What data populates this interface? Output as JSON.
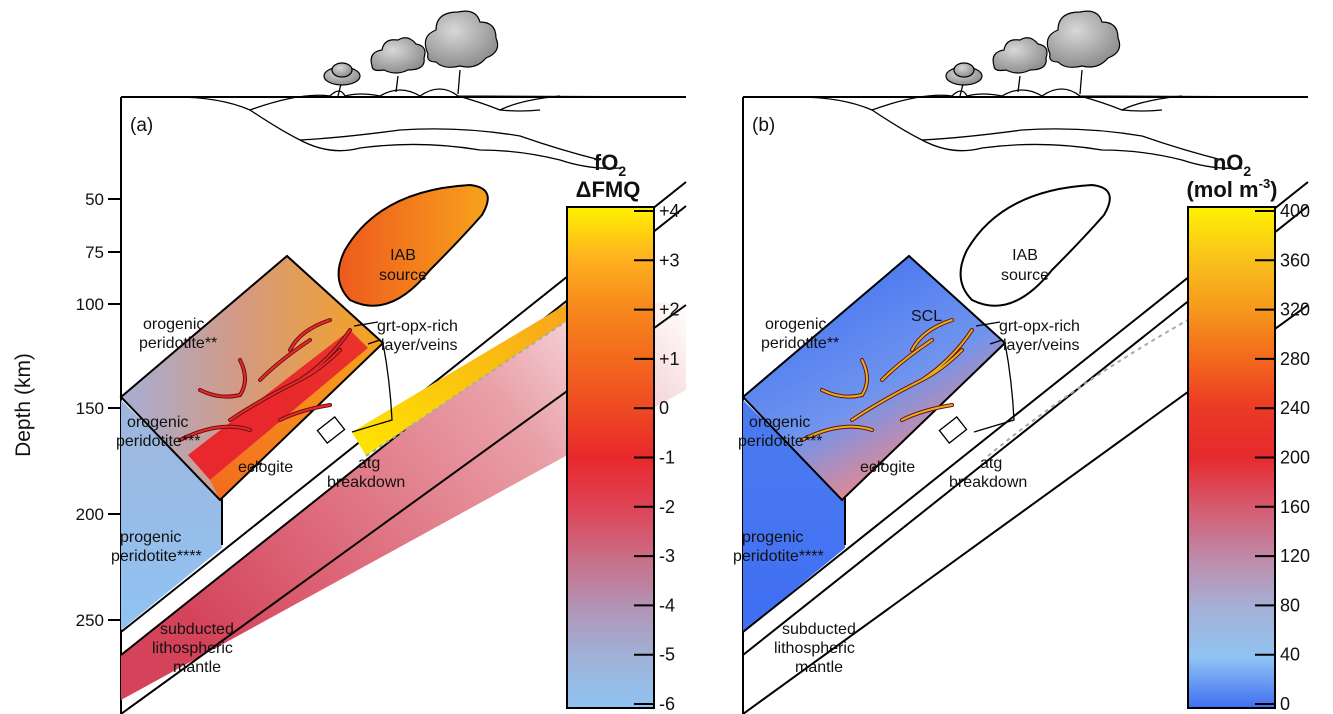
{
  "depth_axis": {
    "label": "Depth (km)",
    "ticks": [
      "50",
      "75",
      "100",
      "150",
      "200",
      "250"
    ]
  },
  "panel_a": {
    "letter": "(a)",
    "colorbar": {
      "title_main": "fO",
      "title_sub": "2",
      "title_line2": "ΔFMQ",
      "ticks": [
        "+4",
        "+3",
        "+2",
        "+1",
        "0",
        "-1",
        "-2",
        "-3",
        "-4",
        "-5",
        "-6"
      ],
      "colors": [
        "#fff200",
        "#ffb21e",
        "#f7891c",
        "#f36a1d",
        "#ee4b22",
        "#e8282c",
        "#de4356",
        "#c96d86",
        "#b294b6",
        "#9fb2d8",
        "#8fc3f3"
      ]
    },
    "labels": {
      "iab1": "IAB",
      "iab2": "source",
      "orog_a1": "orogenic",
      "orog_a2": "peridotite**",
      "orog_b1": "orogenic",
      "orog_b2": "peridotite***",
      "prog1": "progenic",
      "prog2": "peridotite****",
      "grt1": "grt-opx-rich",
      "grt2": "layer/veins",
      "eclogite": "eclogite",
      "atg1": "atg",
      "atg2": "breakdown",
      "sub1": "subducted",
      "sub2": "lithospheric",
      "sub3": "mantle"
    }
  },
  "panel_b": {
    "letter": "(b)",
    "colorbar": {
      "title_main": "nO",
      "title_sub": "2",
      "title_line2_pre": "(mol m",
      "title_line2_sup": "-3",
      "title_line2_post": ")",
      "ticks": [
        "400",
        "360",
        "320",
        "280",
        "240",
        "200",
        "160",
        "120",
        "80",
        "40",
        "0"
      ],
      "colors": [
        "#fff200",
        "#f9c31c",
        "#f69b1c",
        "#f36a1d",
        "#eb3a25",
        "#e52a2e",
        "#d65b70",
        "#bf8aa9",
        "#a6b0d6",
        "#8fc3f3",
        "#3f6ff2"
      ]
    },
    "labels": {
      "iab1": "IAB",
      "iab2": "source",
      "scl": "SCL",
      "orog_a1": "orogenic",
      "orog_a2": "peridotite**",
      "orog_b1": "orogenic",
      "orog_b2": "peridotite***",
      "prog1": "progenic",
      "prog2": "peridotite****",
      "grt1": "grt-opx-rich",
      "grt2": "layer/veins",
      "eclogite": "eclogite",
      "atg1": "atg",
      "atg2": "breakdown",
      "sub1": "subducted",
      "sub2": "lithospheric",
      "sub3": "mantle"
    }
  }
}
